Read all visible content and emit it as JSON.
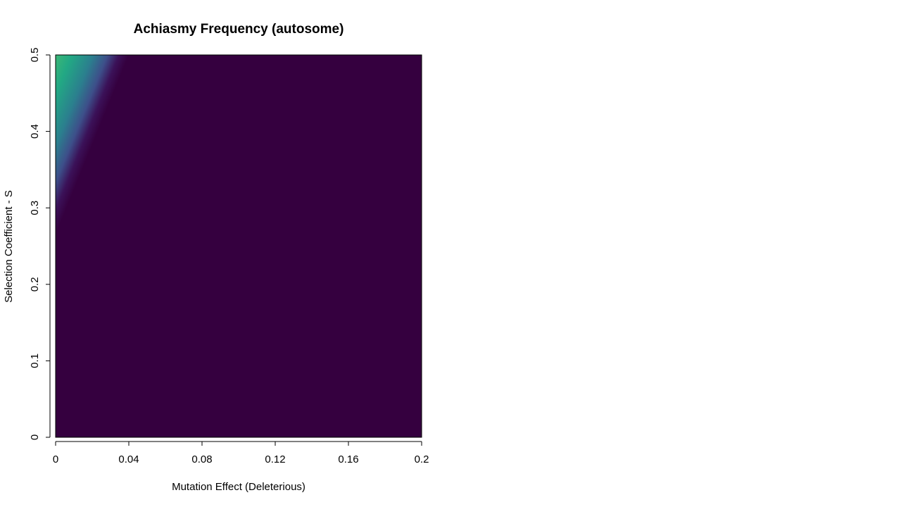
{
  "chart_data": {
    "type": "heatmap",
    "title": "Achiasmy Frequency (autosome)",
    "xlabel": "Mutation Effect (Deleterious)",
    "ylabel": "Selection Coefficient - S",
    "xlim": [
      0,
      0.2
    ],
    "ylim": [
      0,
      0.5
    ],
    "x_ticks": [
      0,
      0.04,
      0.08,
      0.12,
      0.16,
      0.2
    ],
    "x_tick_labels": [
      "0",
      "0.04",
      "0.08",
      "0.12",
      "0.16",
      "0.2"
    ],
    "y_ticks": [
      0,
      0.1,
      0.2,
      0.3,
      0.4,
      0.5
    ],
    "y_tick_labels": [
      "0",
      "0.1",
      "0.2",
      "0.3",
      "0.4",
      "0.5"
    ],
    "colormap": "viridis",
    "colors": {
      "low": "#35003f",
      "high": "#a8db24"
    },
    "boundary": {
      "description": "nonzero region in upper-left; transition line from (x=0, y=0.265) to (x=0.04, y=0.5)",
      "x0": 0,
      "y0": 0.265,
      "x1": 0.04,
      "y1": 0.5,
      "transition_width_x": 0.015
    },
    "legend": "none",
    "grid": false
  }
}
